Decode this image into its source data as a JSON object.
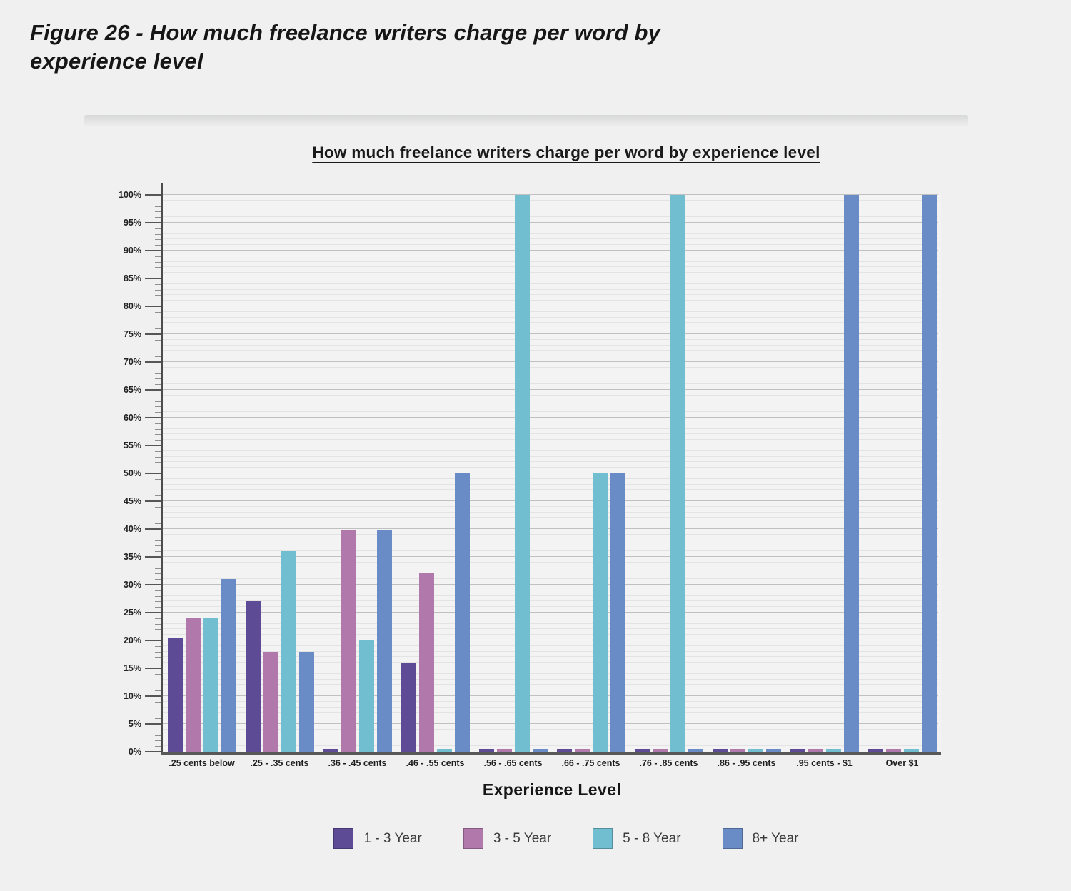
{
  "figure_title": "Figure 26 - How much freelance writers charge per word by experience level",
  "chart_data": {
    "type": "bar",
    "title": "How much freelance writers charge per word by experience level",
    "xlabel": "Experience Level",
    "ylabel": "",
    "ylim": [
      0,
      100
    ],
    "ytick_major_step": 5,
    "ytick_minor_step": 1,
    "ytick_suffix": "%",
    "grid": true,
    "legend_position": "bottom",
    "categories": [
      ".25 cents below",
      ".25 - .35 cents",
      ".36 - .45 cents",
      ".46 - .55 cents",
      ".56 - .65 cents",
      ".66 - .75 cents",
      ".76 - .85 cents",
      ".86 - .95 cents",
      ".95 cents - $1",
      "Over $1"
    ],
    "series": [
      {
        "name": "1 - 3 Year",
        "color": "#5d4b96",
        "values": [
          20.5,
          27,
          0.5,
          16,
          0.5,
          0.5,
          0.5,
          0.5,
          0.5,
          0.5
        ]
      },
      {
        "name": "3 - 5 Year",
        "color": "#b178ac",
        "values": [
          24,
          18,
          39.8,
          32,
          0.5,
          0.5,
          0.5,
          0.5,
          0.5,
          0.5
        ]
      },
      {
        "name": "5 - 8 Year",
        "color": "#71bed0",
        "values": [
          24,
          36,
          20,
          0.5,
          100,
          50,
          100,
          0.5,
          0.5,
          0.5
        ]
      },
      {
        "name": "8+ Year",
        "color": "#6a8cc6",
        "values": [
          31,
          18,
          39.8,
          50,
          0.5,
          50,
          0.5,
          0.5,
          100,
          100
        ]
      }
    ]
  }
}
